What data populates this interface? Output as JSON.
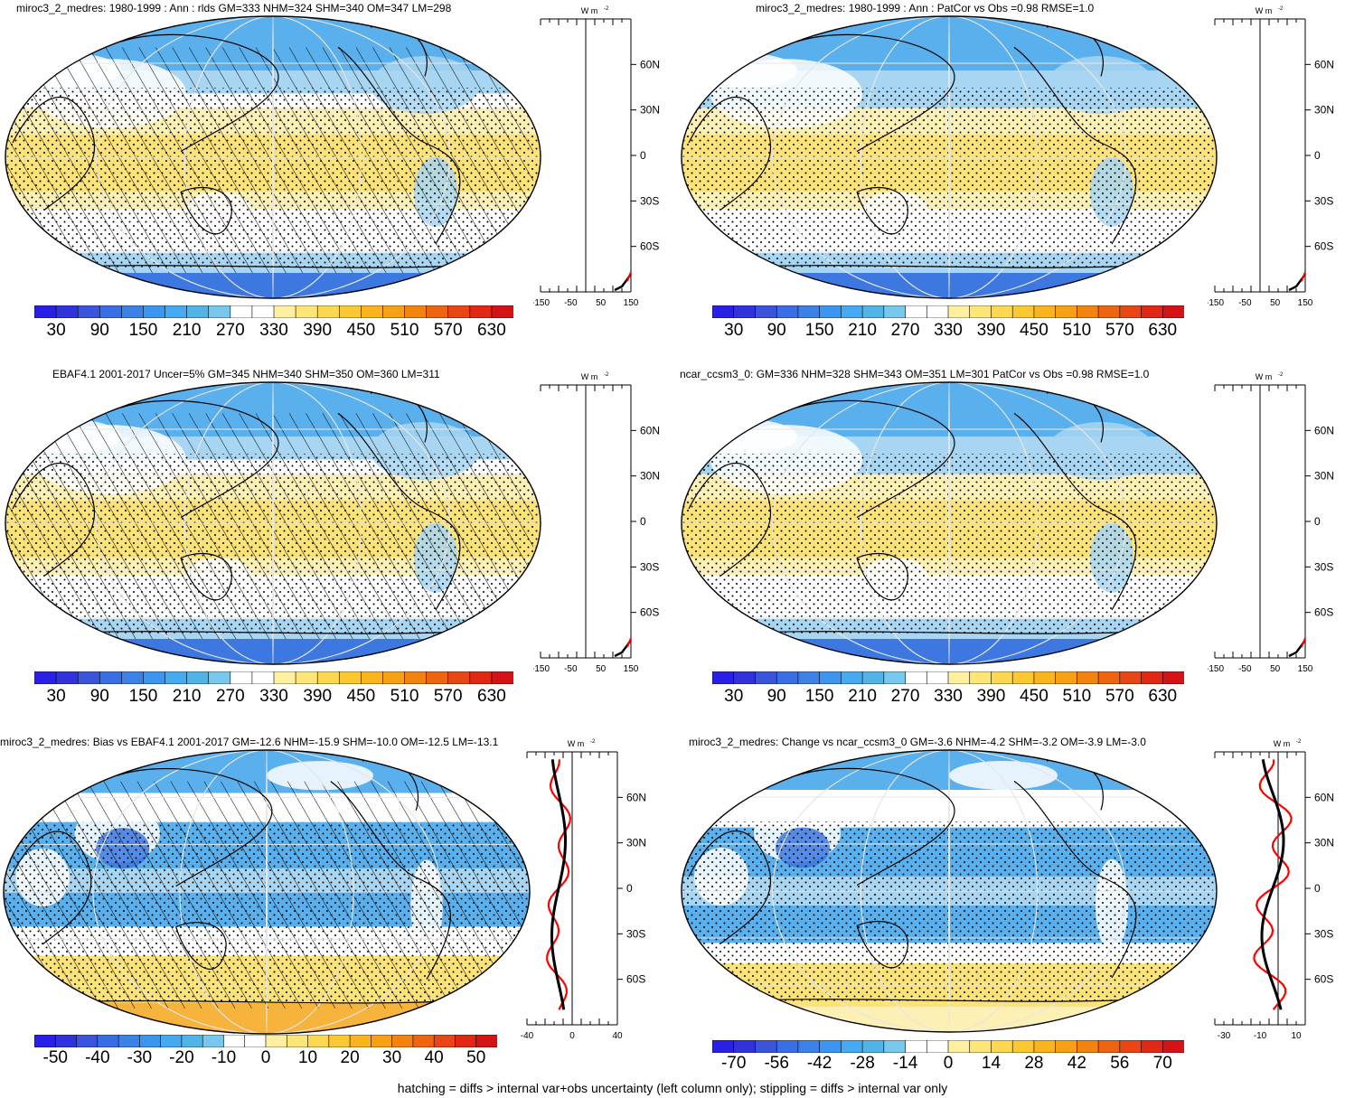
{
  "colors": {
    "scale": [
      "#2a1fe6",
      "#3232dc",
      "#3a55dc",
      "#3a6ee6",
      "#3c82e6",
      "#3c96f0",
      "#46aaf0",
      "#50b4e6",
      "#78c8ee",
      "#ffffff",
      "#ffffff",
      "#fff0a0",
      "#fde678",
      "#fcd850",
      "#fbc832",
      "#f9b41e",
      "#f7a014",
      "#f3820f",
      "#ee640f",
      "#e84614",
      "#e02814",
      "#d41414"
    ],
    "ocean_blue": "#5ab0ec",
    "pale_blue": "#a8d6f2",
    "deep_blue": "#3c78e0",
    "yellow": "#fbe37a",
    "pale_yellow": "#fdf0b4",
    "orange": "#f6b43c",
    "red_line": "#ff0000",
    "blue_line": "#0022ff"
  },
  "panels": [
    {
      "id": "p1",
      "title": "miroc3_2_medres: 1980-1999 : Ann : rlds GM=333 NHM=324 SHM=340 OM=347 LM=298",
      "colorbar_labels": [
        "30",
        "90",
        "150",
        "210",
        "270",
        "330",
        "390",
        "450",
        "510",
        "570",
        "630"
      ],
      "zonal_unit": "W m",
      "zonal_unit_sup": "-2",
      "zonal_xticks": [
        "-150",
        "-50",
        "50",
        "150"
      ],
      "lat_labels": [
        "60N",
        "30N",
        "0",
        "30S",
        "60S"
      ],
      "hatched": true
    },
    {
      "id": "p2",
      "title": "miroc3_2_medres: 1980-1999 : Ann : PatCor vs Obs =0.98 RMSE=1.0",
      "colorbar_labels": [
        "30",
        "90",
        "150",
        "210",
        "270",
        "330",
        "390",
        "450",
        "510",
        "570",
        "630"
      ],
      "zonal_unit": "W m",
      "zonal_unit_sup": "-2",
      "zonal_xticks": [
        "-150",
        "-50",
        "50",
        "150"
      ],
      "lat_labels": [
        "60N",
        "30N",
        "0",
        "30S",
        "60S"
      ],
      "hatched": false
    },
    {
      "id": "p3",
      "title": "EBAF4.1 2001-2017 Uncer=5% GM=345 NHM=340 SHM=350 OM=360 LM=311",
      "colorbar_labels": [
        "30",
        "90",
        "150",
        "210",
        "270",
        "330",
        "390",
        "450",
        "510",
        "570",
        "630"
      ],
      "zonal_unit": "W m",
      "zonal_unit_sup": "-2",
      "zonal_xticks": [
        "-150",
        "-50",
        "50",
        "150"
      ],
      "lat_labels": [
        "60N",
        "30N",
        "0",
        "30S",
        "60S"
      ],
      "hatched": true
    },
    {
      "id": "p4",
      "title": "ncar_ccsm3_0: GM=336 NHM=328 SHM=343 OM=351 LM=301 PatCor vs Obs =0.98 RMSE=1.0",
      "colorbar_labels": [
        "30",
        "90",
        "150",
        "210",
        "270",
        "330",
        "390",
        "450",
        "510",
        "570",
        "630"
      ],
      "zonal_unit": "W m",
      "zonal_unit_sup": "-2",
      "zonal_xticks": [
        "-150",
        "-50",
        "50",
        "150"
      ],
      "lat_labels": [
        "60N",
        "30N",
        "0",
        "30S",
        "60S"
      ],
      "hatched": false
    },
    {
      "id": "p5",
      "title": "miroc3_2_medres: Bias vs EBAF4.1 2001-2017 GM=-12.6 NHM=-15.9 SHM=-10.0 OM=-12.5 LM=-13.1",
      "colorbar_labels": [
        "-50",
        "-40",
        "-30",
        "-20",
        "-10",
        "0",
        "10",
        "20",
        "30",
        "40",
        "50"
      ],
      "zonal_unit": "W m",
      "zonal_unit_sup": "-2",
      "zonal_xticks": [
        "-40",
        "0",
        "40"
      ],
      "lat_labels": [
        "60N",
        "30N",
        "0",
        "30S",
        "60S"
      ],
      "hatched": true
    },
    {
      "id": "p6",
      "title": "miroc3_2_medres: Change vs ncar_ccsm3_0 GM=-3.6 NHM=-4.2 SHM=-3.2 OM=-3.9 LM=-3.0",
      "colorbar_labels": [
        "-70",
        "-56",
        "-42",
        "-28",
        "-14",
        "0",
        "14",
        "28",
        "42",
        "56",
        "70"
      ],
      "zonal_unit": "W m",
      "zonal_unit_sup": "-2",
      "zonal_xticks": [
        "-30",
        "-10",
        "10"
      ],
      "lat_labels": [
        "60N",
        "30N",
        "0",
        "30S",
        "60S"
      ],
      "hatched": false
    }
  ],
  "footer": "hatching = diffs > internal var+obs uncertainty (left column only); stippling = diffs > internal var only",
  "chart_data": [
    {
      "type": "heatmap",
      "title": "miroc3_2_medres: 1980-1999 : Ann : rlds GM=333 NHM=324 SHM=340 OM=347 LM=298",
      "colorbar": [
        30,
        90,
        150,
        210,
        270,
        330,
        390,
        450,
        510,
        570,
        630
      ],
      "zonal_mean": {
        "xlim": [
          -150,
          150
        ],
        "ylabels": [
          "60N",
          "30N",
          "0",
          "30S",
          "60S"
        ]
      }
    },
    {
      "type": "heatmap",
      "title": "miroc3_2_medres: 1980-1999 : Ann : PatCor vs Obs =0.98 RMSE=1.0",
      "colorbar": [
        30,
        90,
        150,
        210,
        270,
        330,
        390,
        450,
        510,
        570,
        630
      ],
      "zonal_mean": {
        "xlim": [
          -150,
          150
        ],
        "ylabels": [
          "60N",
          "30N",
          "0",
          "30S",
          "60S"
        ]
      }
    },
    {
      "type": "heatmap",
      "title": "EBAF4.1 2001-2017 Uncer=5% GM=345 NHM=340 SHM=350 OM=360 LM=311",
      "colorbar": [
        30,
        90,
        150,
        210,
        270,
        330,
        390,
        450,
        510,
        570,
        630
      ],
      "zonal_mean": {
        "xlim": [
          -150,
          150
        ],
        "ylabels": [
          "60N",
          "30N",
          "0",
          "30S",
          "60S"
        ]
      }
    },
    {
      "type": "heatmap",
      "title": "ncar_ccsm3_0: GM=336 NHM=328 SHM=343 OM=351 LM=301 PatCor vs Obs =0.98 RMSE=1.0",
      "colorbar": [
        30,
        90,
        150,
        210,
        270,
        330,
        390,
        450,
        510,
        570,
        630
      ],
      "zonal_mean": {
        "xlim": [
          -150,
          150
        ],
        "ylabels": [
          "60N",
          "30N",
          "0",
          "30S",
          "60S"
        ]
      }
    },
    {
      "type": "heatmap",
      "title": "miroc3_2_medres: Bias vs EBAF4.1 2001-2017 GM=-12.6 NHM=-15.9 SHM=-10.0 OM=-12.5 LM=-13.1",
      "colorbar": [
        -50,
        -40,
        -30,
        -20,
        -10,
        0,
        10,
        20,
        30,
        40,
        50
      ],
      "zonal_mean": {
        "xlim": [
          -40,
          40
        ],
        "ylabels": [
          "60N",
          "30N",
          "0",
          "30S",
          "60S"
        ]
      }
    },
    {
      "type": "heatmap",
      "title": "miroc3_2_medres: Change vs ncar_ccsm3_0 GM=-3.6 NHM=-4.2 SHM=-3.2 OM=-3.9 LM=-3.0",
      "colorbar": [
        -70,
        -56,
        -42,
        -28,
        -14,
        0,
        14,
        28,
        42,
        56,
        70
      ],
      "zonal_mean": {
        "xlim": [
          -30,
          10
        ],
        "ylabels": [
          "60N",
          "30N",
          "0",
          "30S",
          "60S"
        ]
      }
    }
  ]
}
